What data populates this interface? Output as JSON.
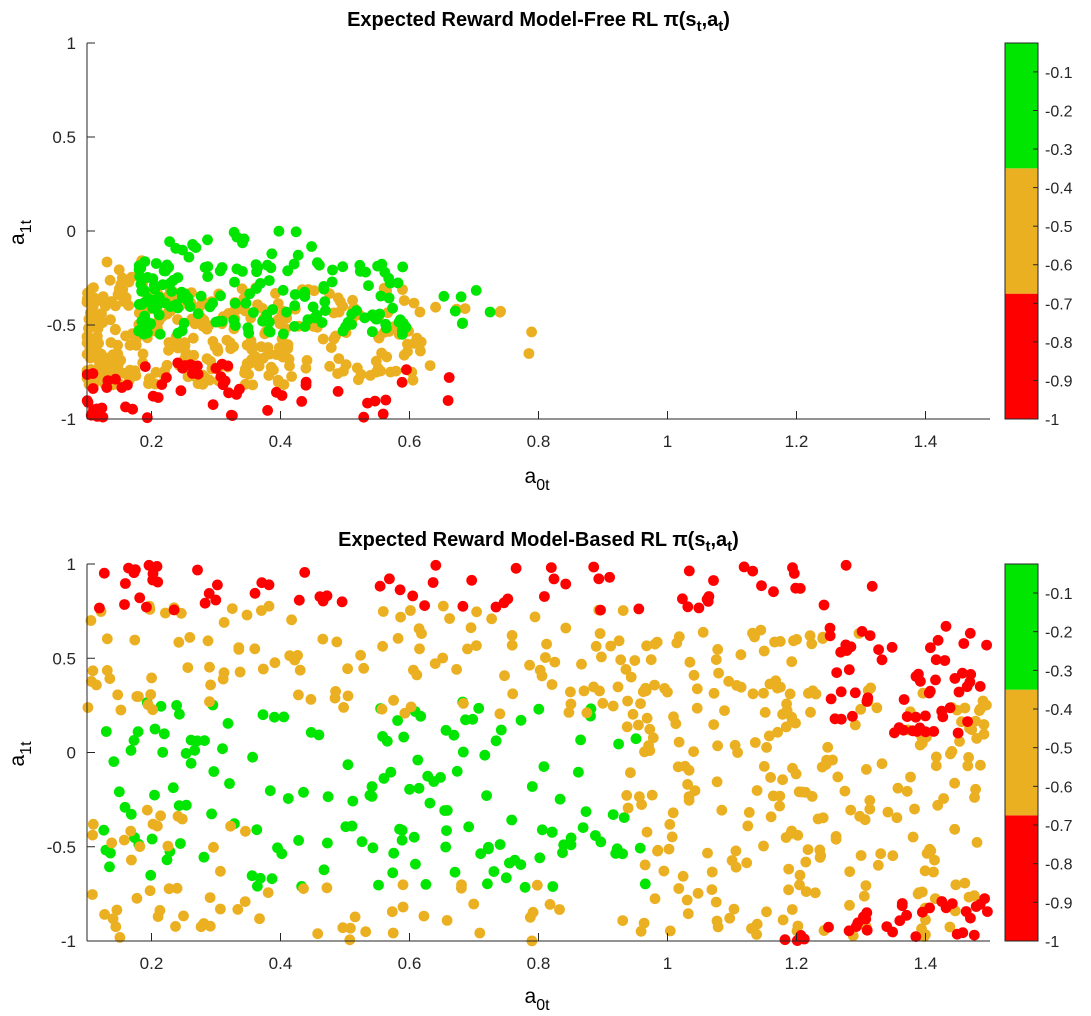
{
  "chart_data": [
    {
      "type": "scatter",
      "title": "Expected Reward Model-Free RL",
      "title_math": "π(s_t,a_t)",
      "xlabel": "a_0t",
      "ylabel": "a_1t",
      "xlim": [
        0.1,
        1.5
      ],
      "ylim": [
        -1,
        1
      ],
      "xticks": [
        0.2,
        0.4,
        0.6,
        0.8,
        1,
        1.2,
        1.4
      ],
      "xtick_labels": [
        "0.2",
        "0.4",
        "0.6",
        "0.8",
        "1",
        "1.2",
        "1.4"
      ],
      "yticks": [
        -1,
        -0.5,
        0,
        0.5,
        1
      ],
      "ytick_labels": [
        "-1",
        "-0.5",
        "0",
        "0.5",
        "1"
      ],
      "grid": false,
      "colorbar": {
        "range": [
          -1,
          -0.025
        ],
        "ticks": [
          -1,
          -0.9,
          -0.8,
          -0.7,
          -0.6,
          -0.5,
          -0.4,
          -0.3,
          -0.2,
          -0.1
        ],
        "tick_labels": [
          "-1",
          "-0.9",
          "-0.8",
          "-0.7",
          "-0.6",
          "-0.5",
          "-0.4",
          "-0.3",
          "-0.2",
          "-0.1"
        ],
        "bands": [
          {
            "from": -1,
            "to": -0.675,
            "color": "#ff0000"
          },
          {
            "from": -0.675,
            "to": -0.35,
            "color": "#ebb021"
          },
          {
            "from": -0.35,
            "to": -0.025,
            "color": "#00e600"
          }
        ]
      },
      "point_generation": {
        "seed": 11,
        "clusters": [
          {
            "class": "orange",
            "n": 330,
            "x": [
              0.1,
              0.62
            ],
            "y": [
              -0.82,
              -0.3
            ],
            "taper": true
          },
          {
            "class": "orange",
            "n": 18,
            "x": [
              0.13,
              0.2
            ],
            "y": [
              -0.42,
              -0.1
            ]
          },
          {
            "class": "orange",
            "n": 8,
            "x": [
              0.63,
              0.81
            ],
            "y": [
              -0.72,
              -0.4
            ]
          },
          {
            "class": "green",
            "n": 150,
            "x": [
              0.18,
              0.6
            ],
            "y": [
              -0.55,
              -0.16
            ],
            "taper": true
          },
          {
            "class": "green",
            "n": 20,
            "x": [
              0.22,
              0.45
            ],
            "y": [
              -0.2,
              0.02
            ]
          },
          {
            "class": "green",
            "n": 10,
            "x": [
              0.55,
              0.73
            ],
            "y": [
              -0.55,
              -0.28
            ]
          },
          {
            "class": "red",
            "n": 60,
            "x": [
              0.1,
              0.68
            ],
            "y": [
              -1,
              -0.7
            ],
            "taper": true
          }
        ]
      }
    },
    {
      "type": "scatter",
      "title": "Expected Reward Model-Based RL",
      "title_math": "π(s_t,a_t)",
      "xlabel": "a_0t",
      "ylabel": "a_1t",
      "xlim": [
        0.1,
        1.5
      ],
      "ylim": [
        -1,
        1
      ],
      "xticks": [
        0.2,
        0.4,
        0.6,
        0.8,
        1,
        1.2,
        1.4
      ],
      "xtick_labels": [
        "0.2",
        "0.4",
        "0.6",
        "0.8",
        "1",
        "1.2",
        "1.4"
      ],
      "yticks": [
        -1,
        -0.5,
        0,
        0.5,
        1
      ],
      "ytick_labels": [
        "-1",
        "-0.5",
        "0",
        "0.5",
        "1"
      ],
      "grid": false,
      "colorbar": {
        "range": [
          -1,
          -0.025
        ],
        "ticks": [
          -1,
          -0.9,
          -0.8,
          -0.7,
          -0.6,
          -0.5,
          -0.4,
          -0.3,
          -0.2,
          -0.1
        ],
        "tick_labels": [
          "-1",
          "-0.9",
          "-0.8",
          "-0.7",
          "-0.6",
          "-0.5",
          "-0.4",
          "-0.3",
          "-0.2",
          "-0.1"
        ],
        "bands": [
          {
            "from": -1,
            "to": -0.675,
            "color": "#ff0000"
          },
          {
            "from": -0.675,
            "to": -0.35,
            "color": "#ebb021"
          },
          {
            "from": -0.35,
            "to": -0.025,
            "color": "#00e600"
          }
        ]
      },
      "point_generation": {
        "seed": 23,
        "clusters": [
          {
            "class": "green",
            "n": 160,
            "x": [
              0.12,
              0.97
            ],
            "y": [
              -0.72,
              0.28
            ]
          },
          {
            "class": "orange",
            "n": 120,
            "x": [
              0.1,
              0.95
            ],
            "y": [
              0.2,
              0.78
            ]
          },
          {
            "class": "orange",
            "n": 40,
            "x": [
              0.1,
              0.9
            ],
            "y": [
              -1,
              -0.7
            ]
          },
          {
            "class": "orange",
            "n": 25,
            "x": [
              0.1,
              0.35
            ],
            "y": [
              -0.9,
              -0.3
            ]
          },
          {
            "class": "orange",
            "n": 230,
            "x": [
              0.93,
              1.5
            ],
            "y": [
              -0.98,
              0.35
            ]
          },
          {
            "class": "orange",
            "n": 40,
            "x": [
              0.95,
              1.3
            ],
            "y": [
              0.3,
              0.65
            ]
          },
          {
            "class": "red",
            "n": 70,
            "x": [
              0.1,
              1.35
            ],
            "y": [
              0.75,
              1
            ]
          },
          {
            "class": "red",
            "n": 60,
            "x": [
              1.25,
              1.5
            ],
            "y": [
              0.1,
              0.7
            ]
          },
          {
            "class": "red",
            "n": 25,
            "x": [
              1.3,
              1.5
            ],
            "y": [
              -0.98,
              -0.75
            ]
          },
          {
            "class": "red",
            "n": 8,
            "x": [
              1.18,
              1.3
            ],
            "y": [
              -1,
              -0.9
            ]
          }
        ]
      }
    }
  ]
}
